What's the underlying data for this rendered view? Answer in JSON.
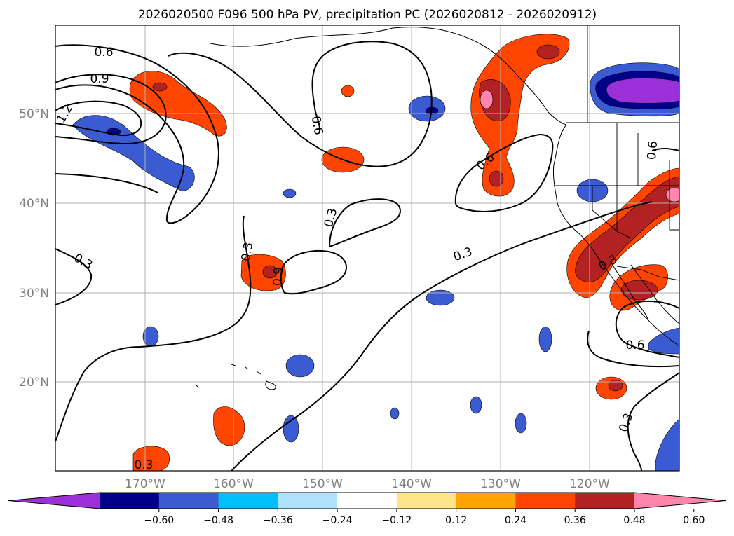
{
  "title": "2026020500 F096 500 hPa PV, precipitation PC (2026020812 - 2026020912)",
  "map": {
    "lon_range": [
      -180,
      -110
    ],
    "lat_range": [
      10,
      60
    ],
    "lat_labels": [
      "50°N",
      "40°N",
      "30°N",
      "20°N"
    ],
    "lon_labels": [
      "170°W",
      "160°W",
      "150°W",
      "140°W",
      "130°W",
      "120°W"
    ],
    "gridlines": true
  },
  "colorbar": {
    "ticks": [
      "−0.60",
      "−0.48",
      "−0.36",
      "−0.24",
      "−0.12",
      "0.12",
      "0.24",
      "0.36",
      "0.48",
      "0.60"
    ],
    "colors": [
      "#9b30d9",
      "#00008b",
      "#3a5bd2",
      "#00bfff",
      "#aee2fb",
      "#ffffff",
      "#fde68a",
      "#ffa500",
      "#ff4500",
      "#b22222",
      "#ff85ad"
    ]
  },
  "contour_labels": [
    "0.6",
    "0.9",
    "1.2",
    "0.6",
    "0.3",
    "0.6",
    "0.3",
    "0.3",
    "0.3",
    "0.6",
    "0.3",
    "0.6",
    "0.3",
    "0.3",
    "0.9"
  ]
}
